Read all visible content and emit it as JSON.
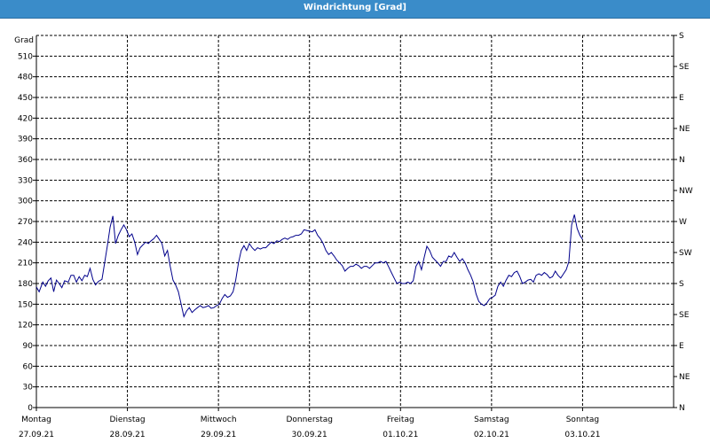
{
  "title": "Windrichtung [Grad]",
  "chart_data": {
    "type": "line",
    "title": "Windrichtung [Grad]",
    "ylabel": "Grad",
    "ylim": [
      0,
      540
    ],
    "y_ticks": [
      0,
      30,
      60,
      90,
      120,
      150,
      180,
      210,
      240,
      270,
      300,
      330,
      360,
      390,
      420,
      450,
      480,
      510
    ],
    "right_axis_labels": [
      "N",
      "NE",
      "E",
      "SE",
      "S",
      "SW",
      "W",
      "NW",
      "N",
      "NE",
      "E",
      "SE",
      "S"
    ],
    "x_ticks": [
      {
        "day": "Montag",
        "date": "27.09.21"
      },
      {
        "day": "Dienstag",
        "date": "28.09.21"
      },
      {
        "day": "Mittwoch",
        "date": "29.09.21"
      },
      {
        "day": "Donnerstag",
        "date": "30.09.21"
      },
      {
        "day": "Freitag",
        "date": "01.10.21"
      },
      {
        "day": "Samstag",
        "date": "02.10.21"
      },
      {
        "day": "Sonntag",
        "date": "03.10.21"
      }
    ],
    "grid": true,
    "line_color": "#00008b",
    "series": [
      {
        "x_unit": "days from Montag 27.09.21 00:00",
        "points": [
          [
            0.0,
            175
          ],
          [
            0.03,
            168
          ],
          [
            0.07,
            182
          ],
          [
            0.1,
            176
          ],
          [
            0.13,
            184
          ],
          [
            0.16,
            188
          ],
          [
            0.19,
            168
          ],
          [
            0.22,
            185
          ],
          [
            0.25,
            180
          ],
          [
            0.28,
            174
          ],
          [
            0.31,
            184
          ],
          [
            0.35,
            182
          ],
          [
            0.38,
            192
          ],
          [
            0.41,
            192
          ],
          [
            0.44,
            182
          ],
          [
            0.47,
            190
          ],
          [
            0.5,
            184
          ],
          [
            0.53,
            192
          ],
          [
            0.56,
            190
          ],
          [
            0.59,
            202
          ],
          [
            0.62,
            186
          ],
          [
            0.65,
            178
          ],
          [
            0.68,
            183
          ],
          [
            0.72,
            186
          ],
          [
            0.75,
            210
          ],
          [
            0.78,
            235
          ],
          [
            0.81,
            262
          ],
          [
            0.84,
            278
          ],
          [
            0.87,
            238
          ],
          [
            0.9,
            250
          ],
          [
            0.93,
            258
          ],
          [
            0.96,
            265
          ],
          [
            0.99,
            258
          ],
          [
            1.02,
            248
          ],
          [
            1.05,
            252
          ],
          [
            1.08,
            240
          ],
          [
            1.11,
            222
          ],
          [
            1.14,
            232
          ],
          [
            1.17,
            236
          ],
          [
            1.2,
            240
          ],
          [
            1.23,
            238
          ],
          [
            1.26,
            242
          ],
          [
            1.29,
            245
          ],
          [
            1.32,
            250
          ],
          [
            1.35,
            244
          ],
          [
            1.38,
            238
          ],
          [
            1.41,
            220
          ],
          [
            1.44,
            228
          ],
          [
            1.47,
            205
          ],
          [
            1.5,
            185
          ],
          [
            1.53,
            178
          ],
          [
            1.56,
            168
          ],
          [
            1.59,
            150
          ],
          [
            1.62,
            132
          ],
          [
            1.65,
            140
          ],
          [
            1.68,
            145
          ],
          [
            1.71,
            138
          ],
          [
            1.74,
            142
          ],
          [
            1.77,
            145
          ],
          [
            1.8,
            148
          ],
          [
            1.83,
            145
          ],
          [
            1.86,
            146
          ],
          [
            1.89,
            148
          ],
          [
            1.92,
            144
          ],
          [
            1.95,
            145
          ],
          [
            1.98,
            148
          ],
          [
            2.01,
            150
          ],
          [
            2.04,
            158
          ],
          [
            2.07,
            164
          ],
          [
            2.1,
            160
          ],
          [
            2.13,
            162
          ],
          [
            2.16,
            168
          ],
          [
            2.19,
            185
          ],
          [
            2.22,
            210
          ],
          [
            2.25,
            228
          ],
          [
            2.28,
            235
          ],
          [
            2.31,
            228
          ],
          [
            2.34,
            238
          ],
          [
            2.37,
            232
          ],
          [
            2.4,
            228
          ],
          [
            2.43,
            232
          ],
          [
            2.46,
            230
          ],
          [
            2.49,
            232
          ],
          [
            2.52,
            232
          ],
          [
            2.55,
            236
          ],
          [
            2.58,
            240
          ],
          [
            2.61,
            238
          ],
          [
            2.64,
            242
          ],
          [
            2.67,
            241
          ],
          [
            2.7,
            244
          ],
          [
            2.73,
            246
          ],
          [
            2.76,
            244
          ],
          [
            2.79,
            247
          ],
          [
            2.82,
            248
          ],
          [
            2.85,
            250
          ],
          [
            2.88,
            250
          ],
          [
            2.91,
            252
          ],
          [
            2.94,
            258
          ],
          [
            2.97,
            257
          ],
          [
            3.0,
            256
          ],
          [
            3.03,
            255
          ],
          [
            3.06,
            258
          ],
          [
            3.09,
            250
          ],
          [
            3.12,
            245
          ],
          [
            3.15,
            238
          ],
          [
            3.18,
            228
          ],
          [
            3.21,
            222
          ],
          [
            3.24,
            225
          ],
          [
            3.27,
            220
          ],
          [
            3.3,
            214
          ],
          [
            3.33,
            210
          ],
          [
            3.36,
            206
          ],
          [
            3.39,
            198
          ],
          [
            3.42,
            202
          ],
          [
            3.45,
            205
          ],
          [
            3.48,
            205
          ],
          [
            3.51,
            208
          ],
          [
            3.54,
            206
          ],
          [
            3.57,
            202
          ],
          [
            3.6,
            205
          ],
          [
            3.63,
            205
          ],
          [
            3.66,
            202
          ],
          [
            3.69,
            206
          ],
          [
            3.72,
            210
          ],
          [
            3.75,
            210
          ],
          [
            3.78,
            212
          ],
          [
            3.81,
            210
          ],
          [
            3.84,
            212
          ],
          [
            3.87,
            204
          ],
          [
            3.9,
            196
          ],
          [
            3.93,
            188
          ],
          [
            3.96,
            180
          ],
          [
            3.99,
            182
          ],
          [
            4.02,
            180
          ],
          [
            4.05,
            180
          ],
          [
            4.08,
            182
          ],
          [
            4.11,
            180
          ],
          [
            4.14,
            184
          ],
          [
            4.17,
            205
          ],
          [
            4.2,
            212
          ],
          [
            4.23,
            200
          ],
          [
            4.26,
            218
          ],
          [
            4.29,
            234
          ],
          [
            4.32,
            228
          ],
          [
            4.35,
            218
          ],
          [
            4.38,
            214
          ],
          [
            4.41,
            210
          ],
          [
            4.44,
            205
          ],
          [
            4.47,
            212
          ],
          [
            4.5,
            212
          ],
          [
            4.53,
            220
          ],
          [
            4.56,
            218
          ],
          [
            4.59,
            225
          ],
          [
            4.62,
            218
          ],
          [
            4.65,
            212
          ],
          [
            4.68,
            216
          ],
          [
            4.71,
            210
          ],
          [
            4.74,
            200
          ],
          [
            4.77,
            192
          ],
          [
            4.8,
            182
          ],
          [
            4.83,
            165
          ],
          [
            4.86,
            154
          ],
          [
            4.89,
            150
          ],
          [
            4.92,
            148
          ],
          [
            4.95,
            152
          ],
          [
            4.98,
            158
          ],
          [
            5.01,
            160
          ],
          [
            5.04,
            163
          ],
          [
            5.07,
            176
          ],
          [
            5.1,
            182
          ],
          [
            5.13,
            176
          ],
          [
            5.16,
            185
          ],
          [
            5.19,
            192
          ],
          [
            5.22,
            190
          ],
          [
            5.25,
            196
          ],
          [
            5.28,
            198
          ],
          [
            5.31,
            190
          ],
          [
            5.34,
            180
          ],
          [
            5.37,
            182
          ],
          [
            5.4,
            185
          ],
          [
            5.43,
            186
          ],
          [
            5.46,
            182
          ],
          [
            5.49,
            192
          ],
          [
            5.52,
            194
          ],
          [
            5.55,
            192
          ],
          [
            5.58,
            196
          ],
          [
            5.61,
            193
          ],
          [
            5.64,
            188
          ],
          [
            5.67,
            190
          ],
          [
            5.7,
            198
          ],
          [
            5.73,
            192
          ],
          [
            5.76,
            188
          ],
          [
            5.79,
            194
          ],
          [
            5.82,
            200
          ],
          [
            5.85,
            212
          ],
          [
            5.88,
            265
          ],
          [
            5.91,
            280
          ],
          [
            5.94,
            260
          ],
          [
            5.97,
            250
          ],
          [
            6.0,
            244
          ]
        ]
      }
    ]
  }
}
